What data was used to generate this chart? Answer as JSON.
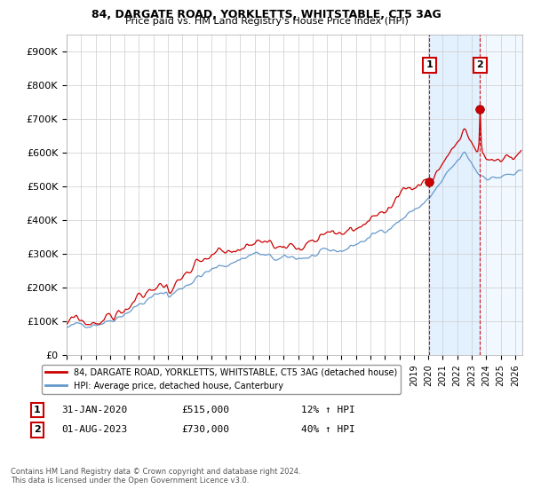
{
  "title": "84, DARGATE ROAD, YORKLETTS, WHITSTABLE, CT5 3AG",
  "subtitle": "Price paid vs. HM Land Registry's House Price Index (HPI)",
  "xlim_start": 1995.0,
  "xlim_end": 2026.5,
  "ylim": [
    0,
    950000
  ],
  "yticks": [
    0,
    100000,
    200000,
    300000,
    400000,
    500000,
    600000,
    700000,
    800000,
    900000
  ],
  "ytick_labels": [
    "£0",
    "£100K",
    "£200K",
    "£300K",
    "£400K",
    "£500K",
    "£600K",
    "£700K",
    "£800K",
    "£900K"
  ],
  "hpi_color": "#6699cc",
  "price_color": "#cc0000",
  "dashed_line_color": "#cc0000",
  "background_color": "#ffffff",
  "grid_color": "#cccccc",
  "legend_label_price": "84, DARGATE ROAD, YORKLETTS, WHITSTABLE, CT5 3AG (detached house)",
  "legend_label_hpi": "HPI: Average price, detached house, Canterbury",
  "marker1_date": 2020.08,
  "marker1_price": 515000,
  "marker2_date": 2023.58,
  "marker2_price": 730000,
  "shade_color": "#ddeeff",
  "hatch_color": "#bbccdd",
  "footnote": "Contains HM Land Registry data © Crown copyright and database right 2024.\nThis data is licensed under the Open Government Licence v3.0.",
  "xtick_years": [
    1995,
    1996,
    1997,
    1998,
    1999,
    2000,
    2001,
    2002,
    2003,
    2004,
    2005,
    2006,
    2007,
    2008,
    2009,
    2010,
    2011,
    2012,
    2013,
    2014,
    2015,
    2016,
    2017,
    2018,
    2019,
    2020,
    2021,
    2022,
    2023,
    2024,
    2025,
    2026
  ]
}
